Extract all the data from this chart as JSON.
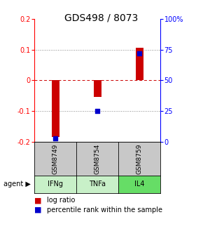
{
  "title": "GDS498 / 8073",
  "samples": [
    "GSM8749",
    "GSM8754",
    "GSM8759"
  ],
  "agents": [
    "IFNg",
    "TNFa",
    "IL4"
  ],
  "log_ratios": [
    -0.185,
    -0.055,
    0.105
  ],
  "percentile_ranks": [
    2.5,
    25.0,
    72.0
  ],
  "ylim_left": [
    -0.2,
    0.2
  ],
  "ylim_right": [
    0,
    100
  ],
  "yticks_left": [
    -0.2,
    -0.1,
    0.0,
    0.1,
    0.2
  ],
  "yticks_right": [
    0,
    25,
    50,
    75,
    100
  ],
  "ytick_labels_left": [
    "-0.2",
    "-0.1",
    "0",
    "0.1",
    "0.2"
  ],
  "ytick_labels_right": [
    "0",
    "25",
    "50",
    "75",
    "100%"
  ],
  "bar_color": "#cc0000",
  "dot_color": "#0000cc",
  "agent_colors": [
    "#c8f0c8",
    "#c8f0c8",
    "#66dd66"
  ],
  "sample_bg_color": "#c8c8c8",
  "zero_line_color": "#cc0000",
  "title_fontsize": 10,
  "tick_fontsize": 7,
  "legend_fontsize": 7
}
